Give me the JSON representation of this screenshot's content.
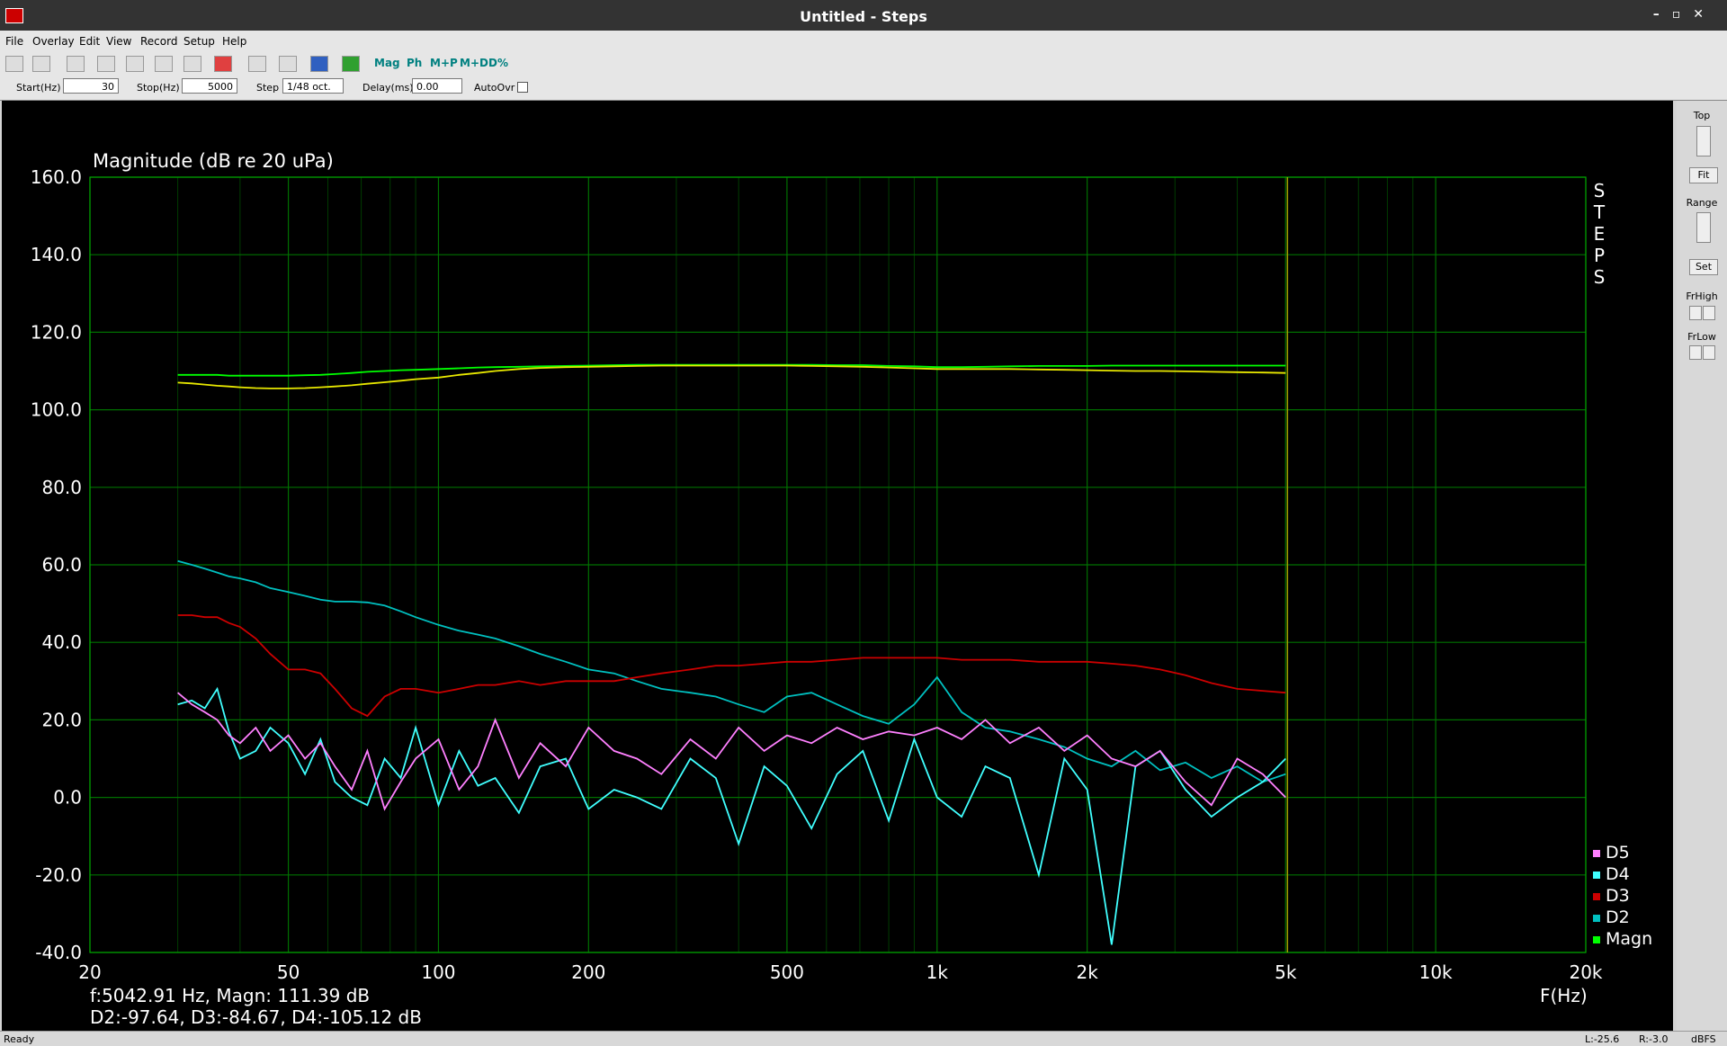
{
  "window": {
    "title": "Untitled - Steps"
  },
  "menu": [
    "File",
    "Overlay",
    "Edit",
    "View",
    "Record",
    "Setup",
    "Help"
  ],
  "toolbar": [
    "Mag",
    "Ph",
    "M+P",
    "M+D",
    "D%"
  ],
  "params": {
    "start_label": "Start(Hz)",
    "start": 30,
    "stop_label": "Stop(Hz)",
    "stop": 5000,
    "step_label": "Step",
    "step": "1/48 oct.",
    "delay_label": "Delay(ms)",
    "delay": "0.00",
    "autoovr_label": "AutoOvr"
  },
  "sidebar": {
    "top": "Top",
    "fit": "Fit",
    "range": "Range",
    "set": "Set",
    "frhigh": "FrHigh",
    "frlow": "FrLow"
  },
  "status": {
    "text": "Ready",
    "left": "L:-25.6",
    "right": "R:-3.0",
    "unit": "dBFS"
  },
  "chart_data": {
    "type": "line",
    "y_label": "Magnitude (dB re 20 uPa)",
    "x_label": "F(Hz)",
    "side_label": "STEPS",
    "readout": [
      "f:5042.91 Hz, Magn: 111.39 dB",
      "D2:-97.64, D3:-84.67, D4:-105.12 dB"
    ],
    "log_x": true,
    "grid": true,
    "background": "#000000",
    "grid_color": "#007000",
    "minor_grid_color": "#003c00",
    "xlim": [
      20,
      20000
    ],
    "ylim": [
      -40,
      160
    ],
    "xticks": [
      20,
      50,
      100,
      200,
      500,
      {
        "value": 1000,
        "label": "1k"
      },
      {
        "value": 2000,
        "label": "2k"
      },
      {
        "value": 5000,
        "label": "5k"
      },
      {
        "value": 10000,
        "label": "10k"
      },
      {
        "value": 20000,
        "label": "20k"
      }
    ],
    "x_minor_grid": [
      30,
      40,
      60,
      70,
      80,
      90,
      300,
      400,
      600,
      700,
      800,
      900,
      3000,
      4000,
      6000,
      7000,
      8000,
      9000
    ],
    "yticks": [
      {
        "value": 160,
        "label": "160.0"
      },
      {
        "value": 140,
        "label": "140.0"
      },
      {
        "value": 120,
        "label": "120.0"
      },
      {
        "value": 100,
        "label": "100.0"
      },
      {
        "value": 80,
        "label": "80.0"
      },
      {
        "value": 60,
        "label": "60.0"
      },
      {
        "value": 40,
        "label": "40.0"
      },
      {
        "value": 20,
        "label": "20.0"
      },
      {
        "value": 0,
        "label": "0.0"
      },
      {
        "value": -20,
        "label": "-20.0"
      },
      {
        "value": -40,
        "label": "-40.0"
      }
    ],
    "cursor": {
      "x": 5042.91,
      "color": "#a0a000"
    },
    "x": [
      30,
      32,
      34,
      36,
      38,
      40,
      43,
      46,
      50,
      54,
      58,
      62,
      67,
      72,
      78,
      84,
      90,
      100,
      110,
      120,
      130,
      145,
      160,
      180,
      200,
      225,
      250,
      280,
      320,
      360,
      400,
      450,
      500,
      560,
      630,
      710,
      800,
      900,
      1000,
      1120,
      1250,
      1400,
      1600,
      1800,
      2000,
      2240,
      2500,
      2800,
      3150,
      3550,
      4000,
      4500,
      5000
    ],
    "series": [
      {
        "name": "Magn",
        "color": "#00ff00",
        "values": [
          109,
          109,
          109,
          109,
          108.8,
          108.8,
          108.8,
          108.8,
          108.8,
          108.9,
          109,
          109.2,
          109.5,
          109.8,
          110,
          110.2,
          110.3,
          110.5,
          110.7,
          110.9,
          111,
          111.1,
          111.2,
          111.3,
          111.4,
          111.5,
          111.6,
          111.6,
          111.6,
          111.6,
          111.6,
          111.6,
          111.6,
          111.6,
          111.5,
          111.5,
          111.3,
          111.2,
          111,
          111,
          111.1,
          111.2,
          111.3,
          111.3,
          111.3,
          111.4,
          111.4,
          111.4,
          111.4,
          111.4,
          111.4,
          111.4,
          111.4
        ]
      },
      {
        "color": "#e8e800",
        "values": [
          107,
          106.8,
          106.5,
          106.2,
          106,
          105.8,
          105.6,
          105.5,
          105.5,
          105.6,
          105.8,
          106,
          106.3,
          106.7,
          107.1,
          107.5,
          107.9,
          108.3,
          109,
          109.5,
          110,
          110.5,
          110.8,
          111,
          111.1,
          111.2,
          111.3,
          111.4,
          111.4,
          111.4,
          111.4,
          111.4,
          111.4,
          111.3,
          111.2,
          111.1,
          110.9,
          110.7,
          110.5,
          110.5,
          110.5,
          110.5,
          110.4,
          110.3,
          110.2,
          110.1,
          110,
          110,
          109.9,
          109.8,
          109.7,
          109.6,
          109.5
        ]
      },
      {
        "name": "D2",
        "color": "#00c0c0",
        "values": [
          61,
          60,
          59,
          58,
          57,
          56.5,
          55.5,
          54,
          53,
          52,
          51,
          50.5,
          50.5,
          50.3,
          49.5,
          48,
          46.5,
          44.5,
          43,
          42,
          41,
          39,
          37,
          35,
          33,
          32,
          30,
          28,
          27,
          26,
          24,
          22,
          26,
          27,
          24,
          21,
          19,
          24,
          31,
          22,
          18,
          17,
          15,
          13,
          10,
          8,
          12,
          7,
          9,
          5,
          8,
          4,
          6
        ]
      },
      {
        "name": "D3",
        "color": "#cc0000",
        "values": [
          47,
          47,
          46.5,
          46.5,
          45,
          44,
          41,
          37,
          33,
          33,
          32,
          28,
          23,
          21,
          26,
          28,
          28,
          27,
          28,
          29,
          29,
          30,
          29,
          30,
          30,
          30,
          31,
          32,
          33,
          34,
          34,
          34.5,
          35,
          35,
          35.5,
          36,
          36,
          36,
          36,
          35.5,
          35.5,
          35.5,
          35,
          35,
          35,
          34.5,
          34,
          33,
          31.5,
          29.5,
          28,
          27.5,
          27
        ]
      },
      {
        "name": "D4",
        "color": "#40ffff",
        "values": [
          24,
          25,
          23,
          28,
          17,
          10,
          12,
          18,
          14,
          6,
          15,
          4,
          0,
          -2,
          10,
          5,
          18,
          -2,
          12,
          3,
          5,
          -4,
          8,
          10,
          -3,
          2,
          0,
          -3,
          10,
          5,
          -12,
          8,
          3,
          -8,
          6,
          12,
          -6,
          15,
          0,
          -5,
          8,
          5,
          -20,
          10,
          2,
          -38,
          8,
          12,
          2,
          -5,
          0,
          4,
          10
        ]
      },
      {
        "name": "D5",
        "color": "#ff80ff",
        "values": [
          27,
          24,
          22,
          20,
          16,
          14,
          18,
          12,
          16,
          10,
          14,
          8,
          2,
          12,
          -3,
          4,
          10,
          15,
          2,
          8,
          20,
          5,
          14,
          8,
          18,
          12,
          10,
          6,
          15,
          10,
          18,
          12,
          16,
          14,
          18,
          15,
          17,
          16,
          18,
          15,
          20,
          14,
          18,
          12,
          16,
          10,
          8,
          12,
          4,
          -2,
          10,
          6,
          0
        ]
      }
    ]
  }
}
